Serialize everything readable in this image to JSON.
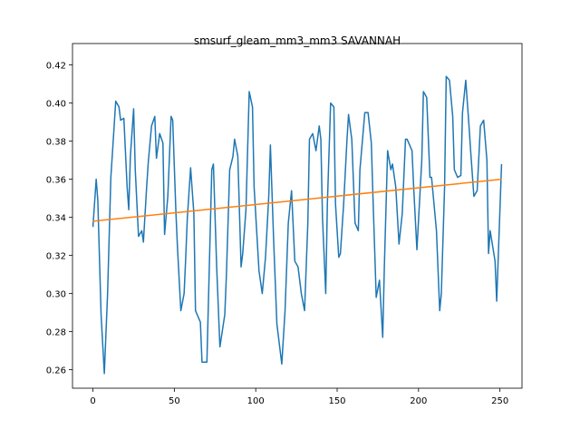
{
  "chart_data": {
    "type": "line",
    "title": "smsurf_gleam_mm3_mm3 SAVANNAH",
    "xlim": [
      -12.55,
      263.55
    ],
    "xticks": [
      0,
      50,
      100,
      150,
      200,
      250
    ],
    "ylim": [
      0.2503,
      0.4265
    ],
    "yticks": [
      0.26,
      0.28,
      {
        "value": 0.3,
        "label": "0.30"
      },
      0.32,
      0.34,
      0.36,
      0.38,
      {
        "value": 0.4,
        "label": "0.40"
      },
      0.42
    ],
    "series": [
      {
        "color": "#1f77b4",
        "x": [
          0,
          2,
          3,
          5,
          7,
          9,
          11,
          12,
          14,
          16,
          17,
          19,
          21,
          22,
          23,
          25,
          26,
          28,
          30,
          31,
          33,
          34,
          36,
          38,
          39,
          41,
          43,
          44,
          46,
          48,
          49,
          51,
          52,
          54,
          56,
          57,
          58,
          60,
          62,
          63,
          66,
          67,
          70,
          73,
          74,
          76,
          78,
          81,
          82,
          84,
          86,
          87,
          89,
          91,
          92,
          94,
          96,
          98,
          99,
          102,
          104,
          106,
          108,
          109,
          111,
          113,
          116,
          118,
          120,
          122,
          124,
          126,
          128,
          130,
          132,
          133,
          135,
          137,
          139,
          140,
          141,
          143,
          144,
          146,
          148,
          149,
          151,
          152,
          154,
          156,
          157,
          159,
          161,
          163,
          164,
          167,
          169,
          171,
          172,
          174,
          176,
          178,
          179,
          181,
          183,
          184,
          186,
          188,
          190,
          192,
          193,
          196,
          197,
          199,
          202,
          203,
          205,
          207,
          208,
          211,
          213,
          214,
          216,
          217,
          219,
          221,
          222,
          224,
          226,
          227,
          229,
          231,
          232,
          234,
          236,
          238,
          240,
          242,
          243,
          244,
          247,
          248,
          251
        ],
        "values": [
          0.335,
          0.36,
          0.349,
          0.289,
          0.258,
          0.3,
          0.361,
          0.374,
          0.401,
          0.398,
          0.391,
          0.392,
          0.356,
          0.344,
          0.372,
          0.397,
          0.365,
          0.33,
          0.333,
          0.327,
          0.356,
          0.369,
          0.388,
          0.393,
          0.371,
          0.384,
          0.379,
          0.331,
          0.351,
          0.393,
          0.391,
          0.342,
          0.323,
          0.291,
          0.3,
          0.319,
          0.34,
          0.366,
          0.342,
          0.291,
          0.285,
          0.264,
          0.264,
          0.365,
          0.368,
          0.314,
          0.272,
          0.289,
          0.31,
          0.365,
          0.372,
          0.381,
          0.372,
          0.314,
          0.321,
          0.344,
          0.406,
          0.398,
          0.356,
          0.312,
          0.3,
          0.319,
          0.351,
          0.378,
          0.328,
          0.284,
          0.263,
          0.291,
          0.337,
          0.354,
          0.317,
          0.314,
          0.3,
          0.291,
          0.337,
          0.381,
          0.384,
          0.375,
          0.388,
          0.381,
          0.34,
          0.3,
          0.347,
          0.4,
          0.398,
          0.347,
          0.319,
          0.321,
          0.347,
          0.38,
          0.394,
          0.381,
          0.337,
          0.333,
          0.365,
          0.395,
          0.395,
          0.379,
          0.351,
          0.298,
          0.307,
          0.277,
          0.314,
          0.375,
          0.365,
          0.368,
          0.356,
          0.326,
          0.342,
          0.381,
          0.381,
          0.375,
          0.356,
          0.323,
          0.37,
          0.406,
          0.403,
          0.361,
          0.361,
          0.333,
          0.291,
          0.3,
          0.356,
          0.414,
          0.412,
          0.393,
          0.365,
          0.361,
          0.362,
          0.395,
          0.412,
          0.388,
          0.375,
          0.351,
          0.354,
          0.388,
          0.391,
          0.37,
          0.321,
          0.333,
          0.317,
          0.296,
          0.368
        ]
      },
      {
        "color": "#ff7f0e",
        "x": [
          0,
          251
        ],
        "values": [
          0.338,
          0.36
        ]
      }
    ]
  }
}
